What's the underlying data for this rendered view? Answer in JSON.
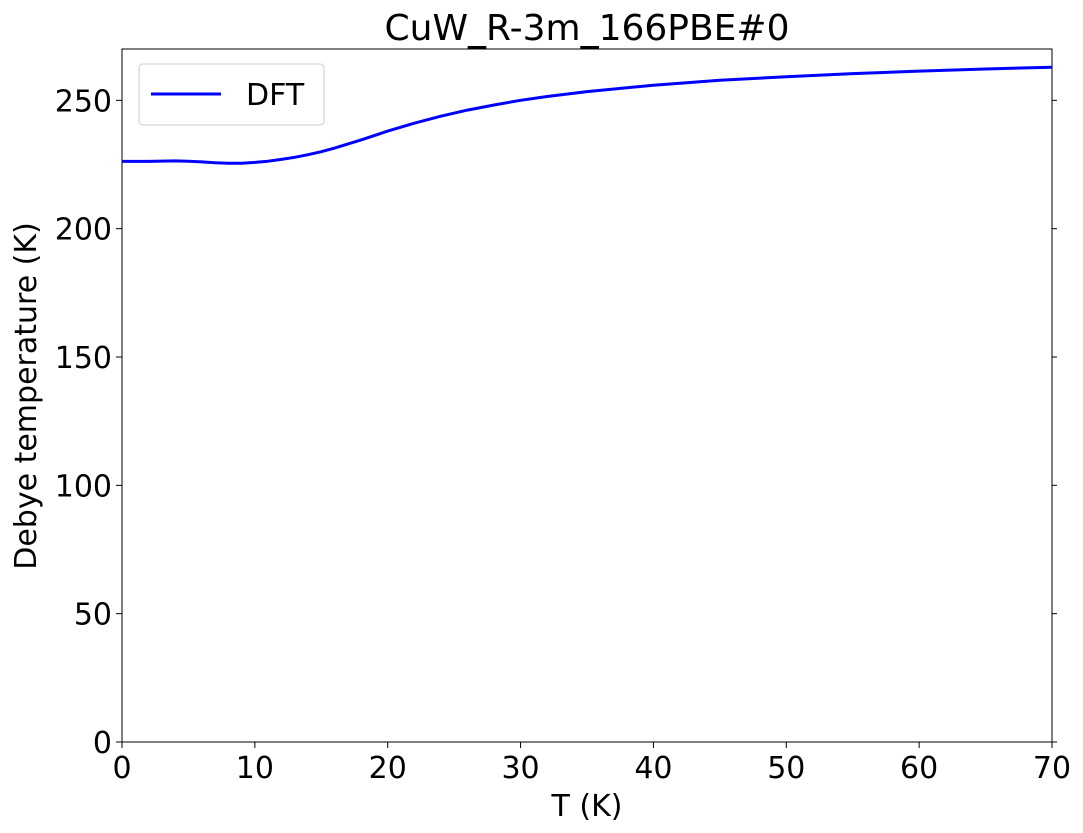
{
  "chart_data": {
    "type": "line",
    "title": "CuW_R-3m_166PBE#0",
    "xlabel": "T (K)",
    "ylabel": "Debye temperature (K)",
    "xlim": [
      0,
      70
    ],
    "ylim": [
      0,
      270
    ],
    "xticks": [
      0,
      10,
      20,
      30,
      40,
      50,
      60,
      70
    ],
    "yticks": [
      0,
      50,
      100,
      150,
      200,
      250
    ],
    "grid": false,
    "legend": {
      "position": "top-left"
    },
    "series": [
      {
        "name": "DFT",
        "color": "#0000ff",
        "x": [
          0,
          2,
          4,
          5,
          6,
          7,
          8,
          9,
          10,
          11,
          12,
          13,
          14,
          15,
          16,
          18,
          20,
          22,
          24,
          26,
          28,
          30,
          32,
          35,
          40,
          45,
          50,
          55,
          60,
          65,
          70
        ],
        "y": [
          226.2,
          226.2,
          226.4,
          226.3,
          226.0,
          225.7,
          225.5,
          225.5,
          225.8,
          226.3,
          227.0,
          227.8,
          228.8,
          230.0,
          231.4,
          234.6,
          238.0,
          241.1,
          243.8,
          246.2,
          248.2,
          250.0,
          251.5,
          253.4,
          255.9,
          257.8,
          259.2,
          260.4,
          261.4,
          262.2,
          262.9
        ]
      }
    ]
  }
}
